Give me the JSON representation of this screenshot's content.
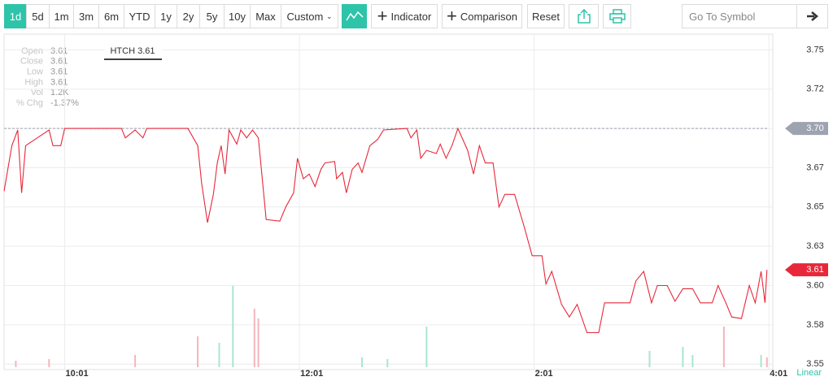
{
  "toolbar": {
    "ranges": [
      "1d",
      "5d",
      "1m",
      "3m",
      "6m",
      "YTD",
      "1y",
      "2y",
      "5y",
      "10y",
      "Max"
    ],
    "custom": "Custom",
    "indicator": "Indicator",
    "comparison": "Comparison",
    "reset": "Reset",
    "search_placeholder": "Go To Symbol"
  },
  "info_panel": [
    {
      "label": "Open",
      "value": "3.61"
    },
    {
      "label": "Close",
      "value": "3.61"
    },
    {
      "label": "Low",
      "value": "3.61"
    },
    {
      "label": "High",
      "value": "3.61"
    },
    {
      "label": "Vol",
      "value": "1.2K"
    },
    {
      "label": "% Chg",
      "value": "-1.37%"
    }
  ],
  "chart_data": {
    "type": "line",
    "tooltip": "HTCH 3.61",
    "scale_label": "Linear",
    "color": "#e8283a",
    "x": [
      "9:30",
      "9:34",
      "9:37",
      "9:39",
      "9:41",
      "9:47",
      "9:53",
      "9:55",
      "9:59",
      "10:01",
      "10:30",
      "10:32",
      "10:37",
      "10:41",
      "10:43",
      "11:04",
      "11:09",
      "11:11",
      "11:14",
      "11:17",
      "11:19",
      "11:21",
      "11:23",
      "11:25",
      "11:29",
      "11:31",
      "11:34",
      "11:37",
      "11:40",
      "11:44",
      "11:51",
      "11:54",
      "11:58",
      "12:00",
      "12:03",
      "12:06",
      "12:09",
      "12:12",
      "12:14",
      "12:19",
      "12:20",
      "12:23",
      "12:25",
      "12:28",
      "12:31",
      "12:33",
      "12:37",
      "12:41",
      "12:44",
      "12:56",
      "12:58",
      "1:01",
      "1:03",
      "1:06",
      "1:11",
      "1:13",
      "1:16",
      "1:19",
      "1:22",
      "1:27",
      "1:30",
      "1:33",
      "1:36",
      "1:40",
      "1:43",
      "1:46",
      "1:51",
      "1:56",
      "2:00",
      "2:05",
      "2:07",
      "2:10",
      "2:15",
      "2:19",
      "2:23",
      "2:28",
      "2:34",
      "2:37",
      "2:40",
      "2:50",
      "2:53",
      "2:57",
      "3:01",
      "3:04",
      "3:09",
      "3:13",
      "3:17",
      "3:22",
      "3:26",
      "3:32",
      "3:35",
      "3:39",
      "3:42",
      "3:47",
      "3:51",
      "3:54",
      "3:57",
      "3:59",
      "4:00"
    ],
    "values": [
      3.66,
      3.689,
      3.699,
      3.659,
      3.689,
      3.694,
      3.699,
      3.689,
      3.689,
      3.7,
      3.7,
      3.694,
      3.699,
      3.694,
      3.7,
      3.7,
      3.689,
      3.665,
      3.64,
      3.658,
      3.678,
      3.689,
      3.671,
      3.699,
      3.69,
      3.699,
      3.694,
      3.699,
      3.694,
      3.642,
      3.641,
      3.65,
      3.659,
      3.681,
      3.668,
      3.671,
      3.663,
      3.674,
      3.678,
      3.679,
      3.668,
      3.672,
      3.659,
      3.674,
      3.678,
      3.672,
      3.689,
      3.693,
      3.699,
      3.7,
      3.694,
      3.699,
      3.681,
      3.686,
      3.684,
      3.69,
      3.681,
      3.689,
      3.7,
      3.686,
      3.671,
      3.689,
      3.678,
      3.678,
      3.65,
      3.658,
      3.658,
      3.637,
      3.619,
      3.619,
      3.601,
      3.609,
      3.588,
      3.58,
      3.588,
      3.57,
      3.57,
      3.589,
      3.589,
      3.589,
      3.603,
      3.609,
      3.589,
      3.6,
      3.6,
      3.59,
      3.598,
      3.598,
      3.589,
      3.589,
      3.6,
      3.589,
      3.58,
      3.579,
      3.6,
      3.589,
      3.609,
      3.589,
      3.61
    ],
    "volume": {
      "up": {
        "color": "#a8e6cf",
        "x": [
          "11:20",
          "11:27",
          "12:33",
          "12:46",
          "1:06",
          "3:00",
          "3:17",
          "3:22",
          "3:57"
        ],
        "values": [
          3000,
          10000,
          1200,
          1000,
          5000,
          2000,
          2500,
          1500,
          1500
        ]
      },
      "down": {
        "color": "#f4b6bd",
        "x": [
          "9:36",
          "9:53",
          "10:37",
          "11:09",
          "11:38",
          "11:40",
          "3:38",
          "4:00"
        ],
        "values": [
          800,
          1000,
          1500,
          3800,
          7200,
          6000,
          5000,
          1200
        ]
      }
    },
    "reference_line": {
      "value": 3.7,
      "label": "3.70",
      "color": "#9ea3b0"
    },
    "last_price": {
      "value": 3.61,
      "label": "3.61",
      "color": "#e8283a"
    },
    "xlim": [
      "9:30",
      "4:03"
    ],
    "xticks": [
      "10:01",
      "12:01",
      "2:01",
      "4:01"
    ],
    "ylim": [
      3.5465,
      3.76
    ],
    "yticks": [
      3.55,
      {
        "value": 3.575,
        "label": "3.58"
      },
      {
        "value": 3.6,
        "label": "3.60"
      },
      {
        "value": 3.625,
        "label": "3.63"
      },
      3.65,
      {
        "value": 3.675,
        "label": "3.67"
      },
      {
        "value": 3.7,
        "label": "3.70"
      },
      {
        "value": 3.725,
        "label": "3.72"
      },
      3.75
    ],
    "grid": true
  }
}
